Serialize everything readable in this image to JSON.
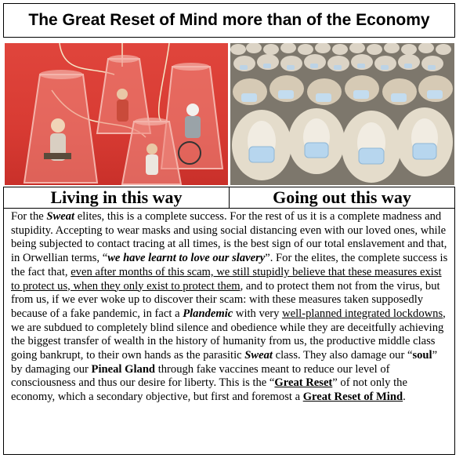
{
  "title": "The Great Reset of Mind more than of the Economy",
  "captions": {
    "left": "Living in this way",
    "right": "Going out this way"
  },
  "body": {
    "s01": "For the ",
    "s02": "Sweat",
    "s03": " elites, this is a complete success.  For the rest of us it is a complete madness and stupidity. Accepting to wear masks and using social distancing even with our loved ones, while being subjected to contact tracing at all times, is the best sign of our total enslavement and that, in Orwellian terms, “",
    "s04": "we have learnt to love our slavery",
    "s05": "”. For the elites, the complete success is the fact that, ",
    "s06": "even after months of this scam, we still stupidly believe that these measures exist to protect us, when they only exist to protect them",
    "s07": ", and to protect them not from the virus, but from us, if we ever woke up to discover their scam: with these measures taken supposedly because of a fake pandemic, in fact a ",
    "s08": "Plandemic",
    "s09": " with very ",
    "s10": "well-planned integrated lockdowns",
    "s11": ", we are subdued to completely blind silence and obedience while they are deceitfully achieving the biggest transfer of wealth in the history of humanity from us, the productive middle class going bankrupt, to their own hands as the parasitic ",
    "s12": "Sweat",
    "s13": " class. They also damage our “",
    "s14": "soul",
    "s15": "” by damaging our ",
    "s16": "Pineal Gland",
    "s17": " through fake vaccines meant to reduce our level of consciousness and thus our desire for liberty. This is the “",
    "s18": "Great Reset",
    "s19": "” of not only the economy, which a secondary objective, but first and foremost a ",
    "s20": "Great Reset of Mind",
    "s21": "."
  }
}
